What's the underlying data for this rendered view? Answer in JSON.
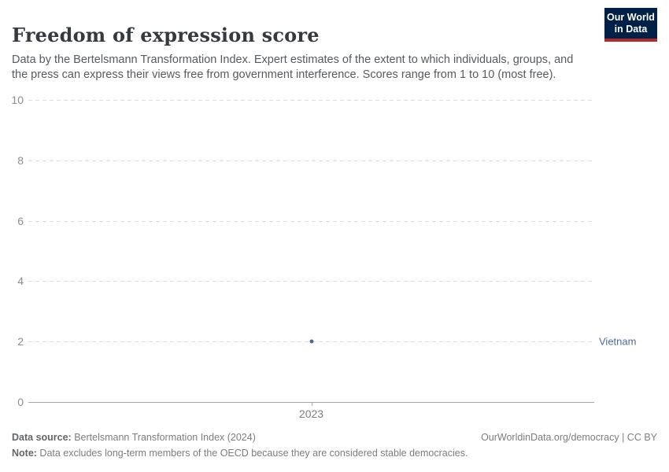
{
  "header": {
    "title": "Freedom of expression score",
    "subtitle": "Data by the Bertelsmann Transformation Index. Expert estimates of the extent to which individuals, groups, and the press can express their views free from government interference. Scores range from 1 to 10 (most free).",
    "logo": {
      "line1": "Our World",
      "line2": "in Data"
    }
  },
  "chart_data": {
    "type": "line",
    "title": "Freedom of expression score",
    "x": [
      2023
    ],
    "xtick_labels": [
      "2023"
    ],
    "series": [
      {
        "name": "Vietnam",
        "values": [
          2
        ],
        "color": "#4c6a9c"
      }
    ],
    "ylim": [
      0,
      10
    ],
    "yticks": [
      0,
      2,
      4,
      6,
      8,
      10
    ],
    "grid": true,
    "gridline_style": "dashed",
    "legend_position": "right-of-series"
  },
  "footer": {
    "datasource_label": "Data source:",
    "datasource_value": " Bertelsmann Transformation Index (2024)",
    "attribution": "OurWorldinData.org/democracy | CC BY",
    "note_label": "Note:",
    "note_value": " Data excludes long-term members of the OECD because they are considered stable democracies."
  },
  "colors": {
    "logo_background": "#002147",
    "logo_accent": "#b3282d",
    "series_blue": "#4c6a9c",
    "gridline": "#dadde0",
    "axis": "#a5a7ab"
  }
}
